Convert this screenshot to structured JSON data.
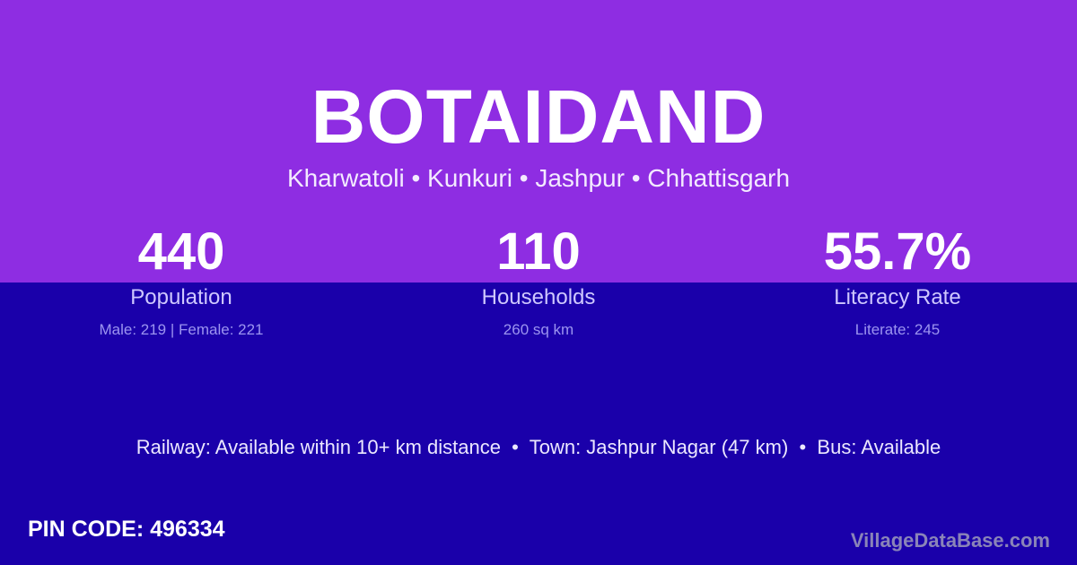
{
  "title": "BOTAIDAND",
  "location": "Kharwatoli • Kunkuri • Jashpur • Chhattisgarh",
  "stats": [
    {
      "value": "440",
      "label": "Population",
      "detail": "Male: 219 | Female: 221"
    },
    {
      "value": "110",
      "label": "Households",
      "detail": "260 sq km"
    },
    {
      "value": "55.7%",
      "label": "Literacy Rate",
      "detail": "Literate: 245"
    }
  ],
  "info": "Railway: Available within 10+ km distance  •  Town: Jashpur Nagar (47 km)  •  Bus: Available",
  "pin": "PIN CODE: 496334",
  "brand": "VillageDataBase.com",
  "colors": {
    "top": "#8e2de2",
    "bottom": "#1a00aa"
  }
}
